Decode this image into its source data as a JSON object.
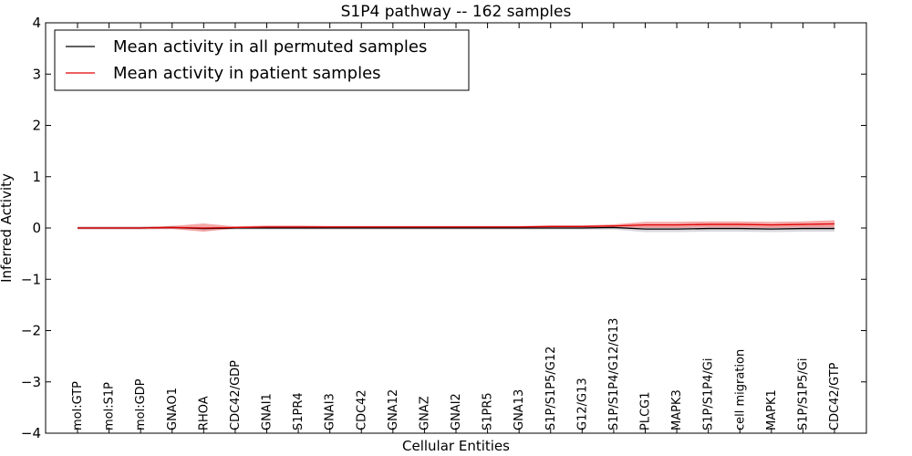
{
  "chart_data": {
    "type": "line",
    "title": "S1P4 pathway -- 162 samples",
    "xlabel": "Cellular Entities",
    "ylabel": "Inferred Activity",
    "ylim": [
      -4,
      4
    ],
    "yticks": [
      -4,
      -3,
      -2,
      -1,
      0,
      1,
      2,
      3,
      4
    ],
    "grid": false,
    "legend_position": "top-left",
    "categories": [
      "mol:GTP",
      "mol:S1P",
      "mol:GDP",
      "GNAO1",
      "RHOA",
      "CDC42/GDP",
      "GNAI1",
      "S1PR4",
      "GNAI3",
      "CDC42",
      "GNA12",
      "GNAZ",
      "GNAI2",
      "S1PR5",
      "GNA13",
      "S1P/S1P5/G12",
      "G12/G13",
      "S1P/S1P4/G12/G13",
      "PLCG1",
      "MAPK3",
      "S1P/S1P4/Gi",
      "cell migration",
      "MAPK1",
      "S1P/S1P5/Gi",
      "CDC42/GTP"
    ],
    "series": [
      {
        "name": "Mean activity in all permuted samples",
        "color": "#000000",
        "band_color": "#c8c8d0",
        "values": [
          0,
          0,
          0,
          0.01,
          -0.01,
          0,
          0,
          0,
          0,
          0,
          0,
          0,
          0,
          0,
          0,
          0,
          0,
          0.01,
          -0.02,
          -0.02,
          -0.01,
          -0.01,
          -0.02,
          -0.01,
          -0.01
        ],
        "band_low": [
          -0.03,
          -0.03,
          -0.03,
          -0.02,
          -0.05,
          -0.03,
          -0.03,
          -0.03,
          -0.03,
          -0.03,
          -0.03,
          -0.03,
          -0.03,
          -0.03,
          -0.03,
          -0.03,
          -0.03,
          -0.03,
          -0.08,
          -0.08,
          -0.07,
          -0.07,
          -0.08,
          -0.07,
          -0.07
        ],
        "band_high": [
          0.03,
          0.03,
          0.03,
          0.04,
          0.02,
          0.03,
          0.03,
          0.03,
          0.03,
          0.03,
          0.03,
          0.03,
          0.03,
          0.03,
          0.03,
          0.03,
          0.03,
          0.04,
          0.04,
          0.04,
          0.05,
          0.05,
          0.04,
          0.05,
          0.05
        ]
      },
      {
        "name": "Mean activity in patient samples",
        "color": "#e00000",
        "band_color": "#f28c8c",
        "values": [
          0,
          0,
          0,
          0.01,
          0,
          0.01,
          0.02,
          0.02,
          0.02,
          0.02,
          0.02,
          0.02,
          0.02,
          0.02,
          0.02,
          0.03,
          0.03,
          0.04,
          0.06,
          0.06,
          0.07,
          0.07,
          0.06,
          0.07,
          0.08
        ],
        "band_low": [
          -0.02,
          -0.02,
          -0.02,
          -0.02,
          -0.07,
          -0.01,
          0,
          0,
          0,
          0,
          0,
          0,
          0,
          0,
          0,
          0.01,
          0.01,
          0.01,
          0,
          0,
          0.01,
          0.01,
          0,
          0.01,
          0.01
        ],
        "band_high": [
          0.02,
          0.02,
          0.02,
          0.04,
          0.09,
          0.03,
          0.05,
          0.05,
          0.04,
          0.04,
          0.04,
          0.04,
          0.04,
          0.04,
          0.04,
          0.05,
          0.05,
          0.07,
          0.12,
          0.12,
          0.13,
          0.13,
          0.12,
          0.13,
          0.15
        ]
      }
    ]
  }
}
